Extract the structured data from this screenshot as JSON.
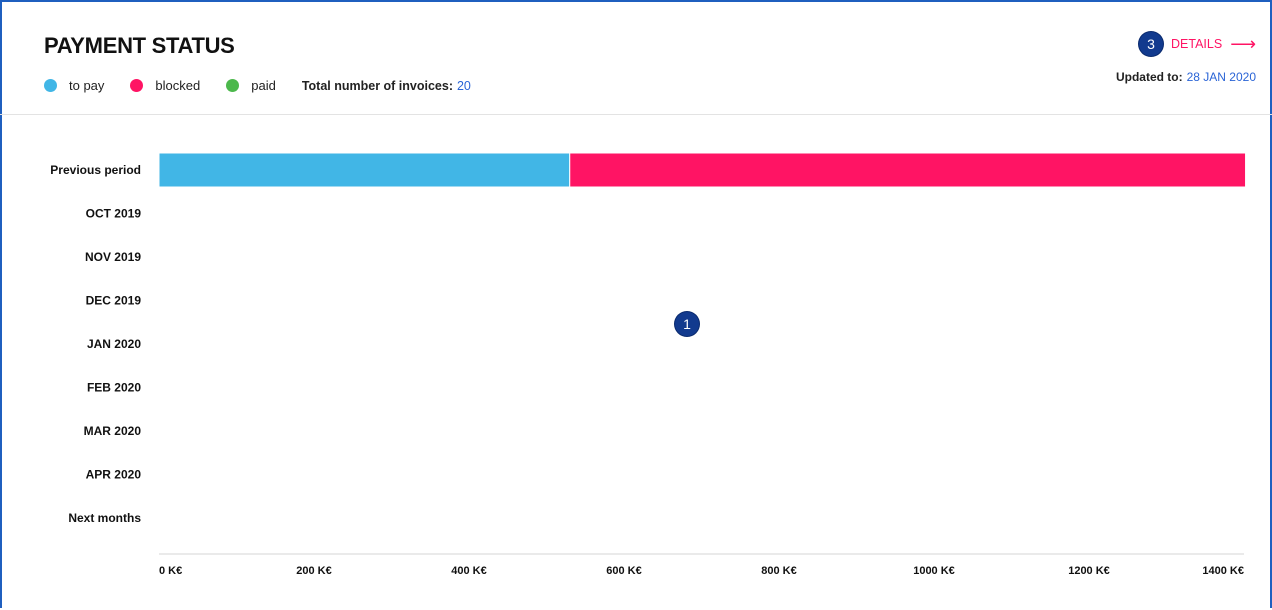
{
  "header": {
    "title": "PAYMENT STATUS",
    "legend": [
      {
        "label": "to pay",
        "color": "#41b6e6"
      },
      {
        "label": "blocked",
        "color": "#ff1464"
      },
      {
        "label": "paid",
        "color": "#4cb84c"
      }
    ],
    "total_label": "Total number of invoices:",
    "total_value": "20",
    "details_badge": "3",
    "details_label": "DETAILS",
    "details_icon": "arrow-right-icon",
    "updated_label": "Updated to:",
    "updated_value": "28 JAN 2020"
  },
  "chart_badge": "1",
  "chart_data": {
    "type": "bar",
    "orientation": "horizontal",
    "stacked": true,
    "categories": [
      "Previous period",
      "OCT 2019",
      "NOV 2019",
      "DEC 2019",
      "JAN 2020",
      "FEB 2020",
      "MAR 2020",
      "APR 2020",
      "Next months"
    ],
    "series": [
      {
        "name": "to pay",
        "color": "#41b6e6",
        "values": [
          530,
          0,
          0,
          0,
          0,
          0,
          0,
          0,
          0
        ]
      },
      {
        "name": "blocked",
        "color": "#ff1464",
        "values": [
          872,
          0,
          0,
          0,
          0,
          0,
          0,
          0,
          0
        ]
      },
      {
        "name": "paid",
        "color": "#4cb84c",
        "values": [
          0,
          0,
          0,
          0,
          0,
          0,
          0,
          0,
          0
        ]
      }
    ],
    "xticks": [
      "0 K€",
      "200 K€",
      "400 K€",
      "600 K€",
      "800 K€",
      "1000 K€",
      "1200 K€",
      "1400 K€"
    ],
    "xtick_values": [
      0,
      200,
      400,
      600,
      800,
      1000,
      1200,
      1400
    ],
    "xlim": [
      0,
      1400
    ],
    "xlabel": "",
    "ylabel": "",
    "grid": false,
    "legend": "top-left"
  }
}
